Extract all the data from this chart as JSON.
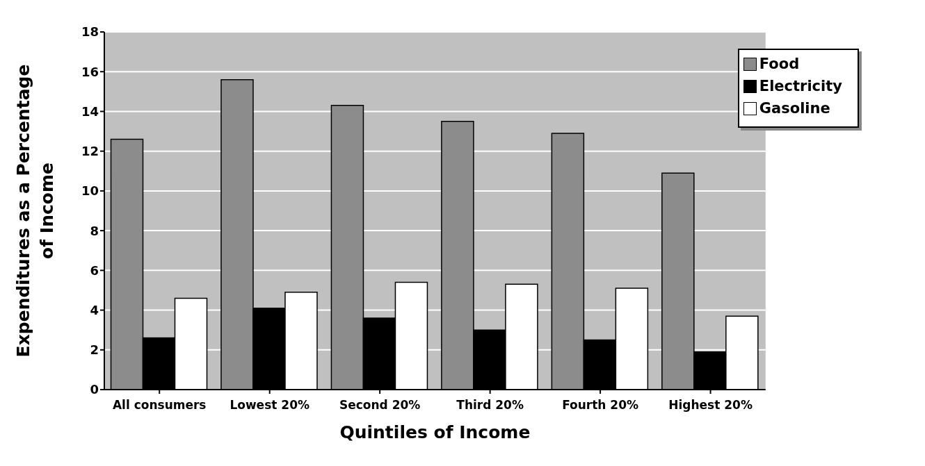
{
  "chart_data": {
    "type": "bar",
    "xlabel": "Quintiles of Income",
    "ylabel": "Expenditures as a Percentage of Income",
    "categories": [
      "All consumers",
      "Lowest 20%",
      "Second 20%",
      "Third 20%",
      "Fourth 20%",
      "Highest 20%"
    ],
    "series": [
      {
        "name": "Food",
        "color": "#8c8c8c",
        "values": [
          12.6,
          15.6,
          14.3,
          13.5,
          12.9,
          10.9
        ]
      },
      {
        "name": "Electricity",
        "color": "#000000",
        "values": [
          2.6,
          4.1,
          3.6,
          3.0,
          2.5,
          1.9
        ]
      },
      {
        "name": "Gasoline",
        "color": "#ffffff",
        "values": [
          4.6,
          4.9,
          5.4,
          5.3,
          5.1,
          3.7
        ]
      }
    ],
    "ylim": [
      0,
      18
    ],
    "yticks": [
      0,
      2,
      4,
      6,
      8,
      10,
      12,
      14,
      16,
      18
    ],
    "grid": "y",
    "legend": "top right"
  }
}
